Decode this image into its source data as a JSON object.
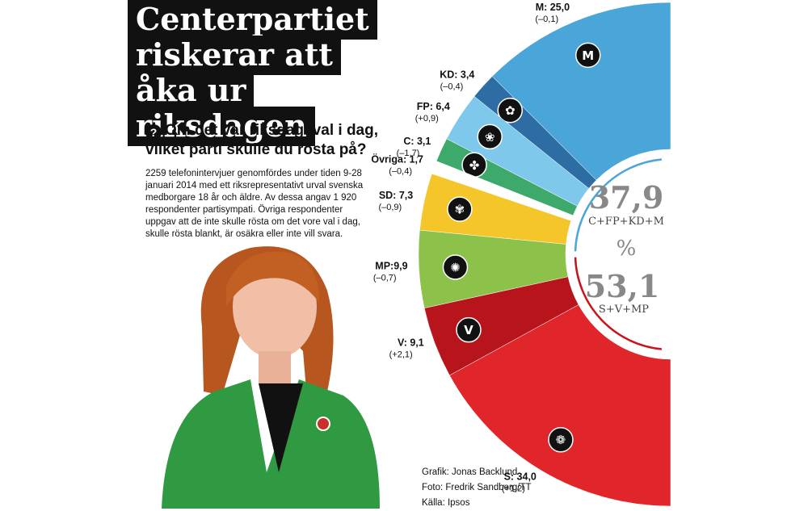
{
  "headline": "Centerpartiet riskerar att åka ur riksdagen",
  "question": "Om det var riksdagsval i dag, vilket parti skulle du rösta på?",
  "question_icon": "?",
  "method": "2259 telefonintervjuer genomfördes under tiden 9-28 januari 2014 med ett riksrepresentativt urval svenska medborgare 18 år och äldre. Av dessa angav 1 920 respondenter partisympati. Övriga respondenter uppgav att de inte skulle rösta om det vore val i dag, skulle rösta blankt, är osäkra eller inte vill svara.",
  "credits": {
    "graphic": "Grafik: Jonas Backlund",
    "photo": "Foto: Fredrik Sandberg/TT",
    "source": "Källa: Ipsos"
  },
  "chart_data": {
    "type": "pie",
    "variant": "half-donut",
    "series": [
      {
        "label": "M: 25,0",
        "change": "(–0,1)",
        "value": 25.0,
        "color": "#4aa6d9",
        "icon": "moderaterna-logo-icon"
      },
      {
        "label": "KD: 3,4",
        "change": "(–0,4)",
        "value": 3.4,
        "color": "#2e6da4",
        "icon": "kd-flower-icon"
      },
      {
        "label": "FP: 6,4",
        "change": "(+0,9)",
        "value": 6.4,
        "color": "#7ec8ec",
        "icon": "fp-lotus-icon"
      },
      {
        "label": "C: 3,1",
        "change": "(–1,7)",
        "value": 3.1,
        "color": "#3daa6b",
        "icon": "clover-icon"
      },
      {
        "label": "Övriga: 1,7",
        "change": "(–0,4)",
        "value": 1.7,
        "color": "#ffffff",
        "icon": ""
      },
      {
        "label": "SD: 7,3",
        "change": "(–0,9)",
        "value": 7.3,
        "color": "#f5c62a",
        "icon": "sd-flower-icon"
      },
      {
        "label": "MP:9,9",
        "change": "(–0,7)",
        "value": 9.9,
        "color": "#8cc24a",
        "icon": "dandelion-icon"
      },
      {
        "label": "V: 9,1",
        "change": "(+2,1)",
        "value": 9.1,
        "color": "#b8141b",
        "icon": "v-letter-icon"
      },
      {
        "label": "S: 34,0",
        "change": "(+1,2)",
        "value": 34.0,
        "color": "#e0252b",
        "icon": "rose-icon"
      }
    ],
    "blocs": [
      {
        "value": "37,9",
        "label": "C+FP+KD+M",
        "arc_color": "#4aa6d9"
      },
      {
        "value": "53,1",
        "label": "S+V+MP",
        "arc_color": "#c8141b"
      }
    ],
    "unit": "%"
  }
}
